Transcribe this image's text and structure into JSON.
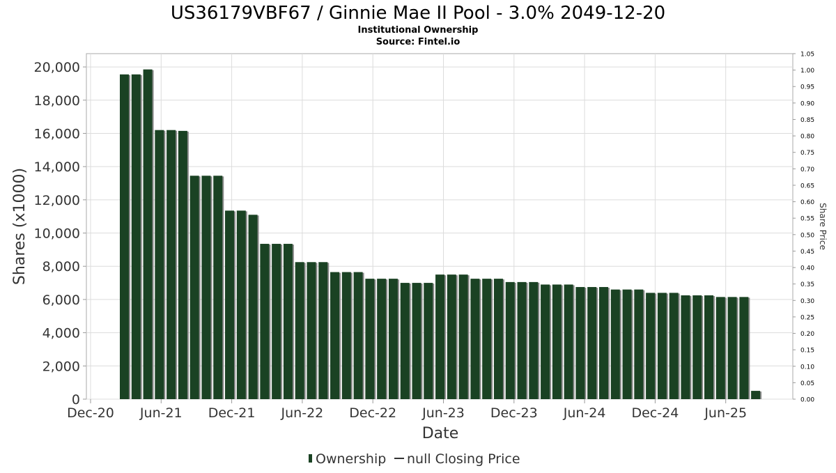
{
  "chart_data": {
    "type": "bar",
    "title": "US36179VBF67 / Ginnie Mae II Pool - 3.0% 2049-12-20",
    "subtitle_line1": "Institutional Ownership",
    "subtitle_line2": "Source: Fintel.io",
    "xlabel": "Date",
    "ylabel": "Shares (x1000)",
    "y2label": "Share Price",
    "ylim": [
      0,
      20800
    ],
    "y2lim": [
      0,
      1.05
    ],
    "grid": true,
    "legend_placement": "bottom-center",
    "x_tick_labels": [
      "Dec-20",
      "Jun-21",
      "Dec-21",
      "Jun-22",
      "Dec-22",
      "Jun-23",
      "Dec-23",
      "Jun-24",
      "Dec-24",
      "Jun-25"
    ],
    "y_tick_labels": [
      "0",
      "2,000",
      "4,000",
      "6,000",
      "8,000",
      "10,000",
      "12,000",
      "14,000",
      "16,000",
      "18,000",
      "20,000"
    ],
    "y_tick_values": [
      0,
      2000,
      4000,
      6000,
      8000,
      10000,
      12000,
      14000,
      16000,
      18000,
      20000
    ],
    "y2_tick_labels": [
      "0.00",
      "0.05",
      "0.10",
      "0.15",
      "0.20",
      "0.25",
      "0.30",
      "0.35",
      "0.40",
      "0.45",
      "0.50",
      "0.55",
      "0.60",
      "0.65",
      "0.70",
      "0.75",
      "0.80",
      "0.85",
      "0.90",
      "0.95",
      "1.00",
      "1.05"
    ],
    "y2_tick_values": [
      0,
      0.05,
      0.1,
      0.15,
      0.2,
      0.25,
      0.3,
      0.35,
      0.4,
      0.45,
      0.5,
      0.55,
      0.6,
      0.65,
      0.7,
      0.75,
      0.8,
      0.85,
      0.9,
      0.95,
      1.0,
      1.05
    ],
    "series": [
      {
        "name": "Ownership",
        "color": "#1a4223",
        "values": [
          19550,
          19550,
          19850,
          16200,
          16200,
          16150,
          13450,
          13450,
          13450,
          11350,
          11350,
          11100,
          9350,
          9350,
          9350,
          8250,
          8250,
          8250,
          7650,
          7650,
          7650,
          7250,
          7250,
          7250,
          7000,
          7000,
          7000,
          7500,
          7500,
          7500,
          7250,
          7250,
          7250,
          7050,
          7050,
          7050,
          6900,
          6900,
          6900,
          6750,
          6750,
          6750,
          6600,
          6600,
          6600,
          6400,
          6400,
          6400,
          6250,
          6250,
          6250,
          6150,
          6150,
          6150,
          500
        ]
      }
    ],
    "legend": {
      "ownership_label": "Ownership",
      "price_label": "null Closing Price"
    },
    "colors": {
      "bar": "#1a4223",
      "bar_shadow": "#8a8a8a",
      "grid": "#dcdcdc",
      "axis": "#999999",
      "text": "#333333"
    }
  }
}
